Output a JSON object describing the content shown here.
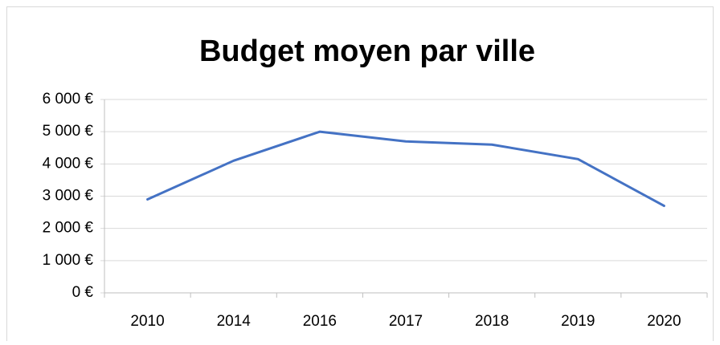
{
  "chart_data": {
    "type": "line",
    "title": "Budget moyen par ville",
    "categories": [
      "2010",
      "2014",
      "2016",
      "2017",
      "2018",
      "2019",
      "2020"
    ],
    "series": [
      {
        "name": "Budget moyen",
        "color": "#4472c4",
        "values": [
          2900,
          4100,
          5000,
          4700,
          4600,
          4150,
          2700
        ]
      }
    ],
    "ylim": [
      0,
      6000
    ],
    "yticks": [
      {
        "value": 0,
        "label": "0 €"
      },
      {
        "value": 1000,
        "label": "1 000 €"
      },
      {
        "value": 2000,
        "label": "2 000 €"
      },
      {
        "value": 3000,
        "label": "3 000 €"
      },
      {
        "value": 4000,
        "label": "4 000 €"
      },
      {
        "value": 5000,
        "label": "5 000 €"
      },
      {
        "value": 6000,
        "label": "6 000 €"
      }
    ],
    "grid": true
  }
}
